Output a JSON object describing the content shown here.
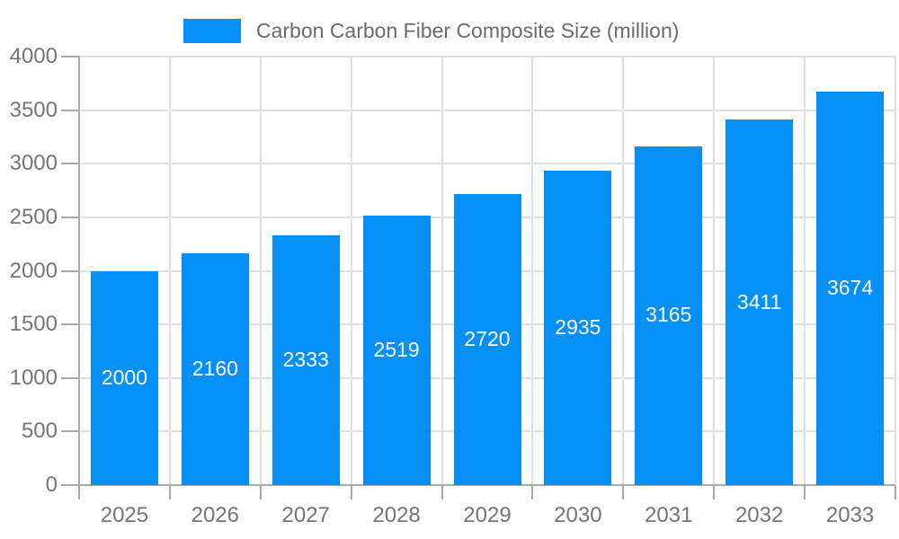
{
  "legend": {
    "label": "Carbon Carbon Fiber Composite Size (million)"
  },
  "chart_data": {
    "type": "bar",
    "title": "Carbon Carbon Fiber Composite Size (million)",
    "categories": [
      "2025",
      "2026",
      "2027",
      "2028",
      "2029",
      "2030",
      "2031",
      "2032",
      "2033"
    ],
    "values": [
      2000,
      2160,
      2333,
      2519,
      2720,
      2935,
      3165,
      3411,
      3674
    ],
    "xlabel": "",
    "ylabel": "",
    "ylim": [
      0,
      4000
    ],
    "yticks": [
      0,
      500,
      1000,
      1500,
      2000,
      2500,
      3000,
      3500,
      4000
    ],
    "grid": true,
    "legend_position": "top",
    "value_labels": "inside-center",
    "colors": {
      "bar": "#0590f8",
      "grid": "#e0e0e0",
      "axis": "#a9a9a9",
      "tick_label": "#757575",
      "legend_text": "#6b6b6b",
      "value_label": "#ffffff",
      "background": "#ffffff"
    }
  }
}
